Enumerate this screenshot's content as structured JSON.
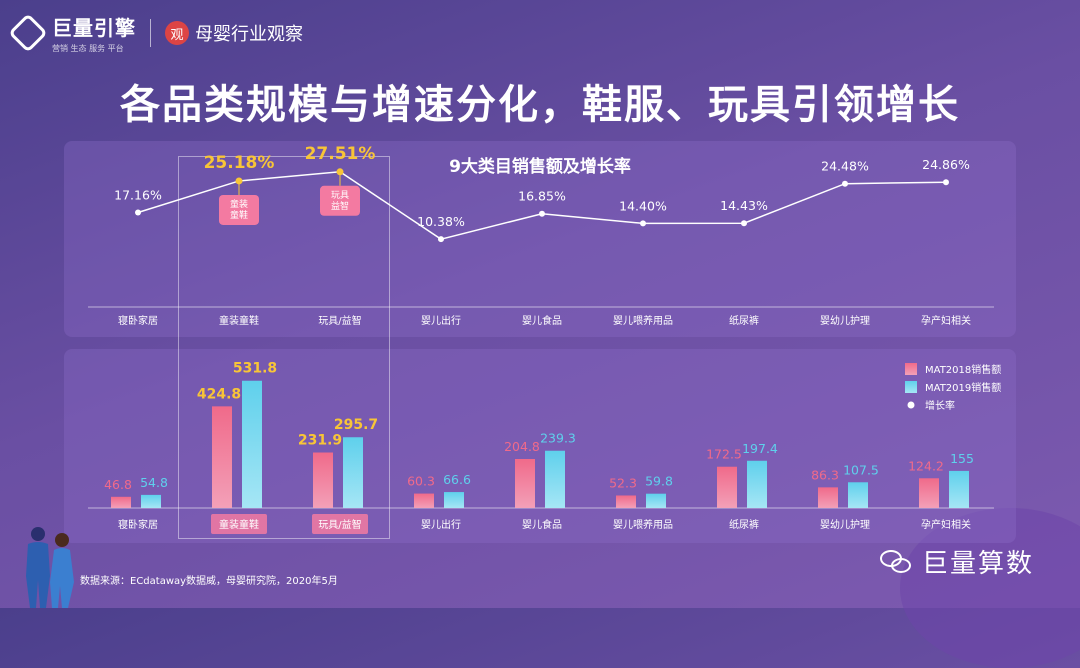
{
  "header": {
    "brand": "巨量引擎",
    "brand_sub": "营销 生态 服务 平台",
    "partner_seal": "观",
    "partner": "母婴行业观察"
  },
  "headline": "各品类规模与增速分化，鞋服、玩具引领增长",
  "footer": {
    "source": "数据来源：ECdataway数据威，母婴研究院，2020年5月",
    "brand": "巨量算数"
  },
  "colors": {
    "bar2018": "#f06a8a",
    "bar2019": "#5fd0ec",
    "highlight_value": "#f8c537",
    "normal_value": "#ffffff",
    "badge": "#f37aa1"
  },
  "chart_data": [
    {
      "type": "line",
      "title": "9大类目销售额及增长率",
      "categories": [
        "寝卧家居",
        "童装童鞋",
        "玩具/益智",
        "婴儿出行",
        "婴儿食品",
        "婴儿喂养用品",
        "纸尿裤",
        "婴幼儿护理",
        "孕产妇相关"
      ],
      "values": [
        17.16,
        25.18,
        27.51,
        10.38,
        16.85,
        14.4,
        14.43,
        24.48,
        24.86
      ],
      "value_labels": [
        "17.16%",
        "25.18%",
        "27.51%",
        "10.38%",
        "16.85%",
        "14.40%",
        "14.43%",
        "24.48%",
        "24.86%"
      ],
      "highlighted": [
        "童装童鞋",
        "玩具/益智"
      ],
      "callouts": [
        [
          "童装",
          "童鞋"
        ],
        [
          "玩具",
          "益智"
        ]
      ],
      "ylim": [
        0,
        30
      ],
      "grid": false
    },
    {
      "type": "bar",
      "categories": [
        "寝卧家居",
        "童装童鞋",
        "玩具/益智",
        "婴儿出行",
        "婴儿食品",
        "婴儿喂养用品",
        "纸尿裤",
        "婴幼儿护理",
        "孕产妇相关"
      ],
      "series": [
        {
          "name": "MAT2018销售额",
          "values": [
            46.8,
            424.8,
            231.9,
            60.3,
            204.8,
            52.3,
            172.5,
            86.3,
            124.2
          ]
        },
        {
          "name": "MAT2019销售额",
          "values": [
            54.8,
            531.8,
            295.7,
            66.6,
            239.3,
            59.8,
            197.4,
            107.5,
            155
          ]
        }
      ],
      "legend_extra": "增长率",
      "legend_position": "top-right",
      "ylim": [
        0,
        560
      ],
      "grid": false
    }
  ]
}
